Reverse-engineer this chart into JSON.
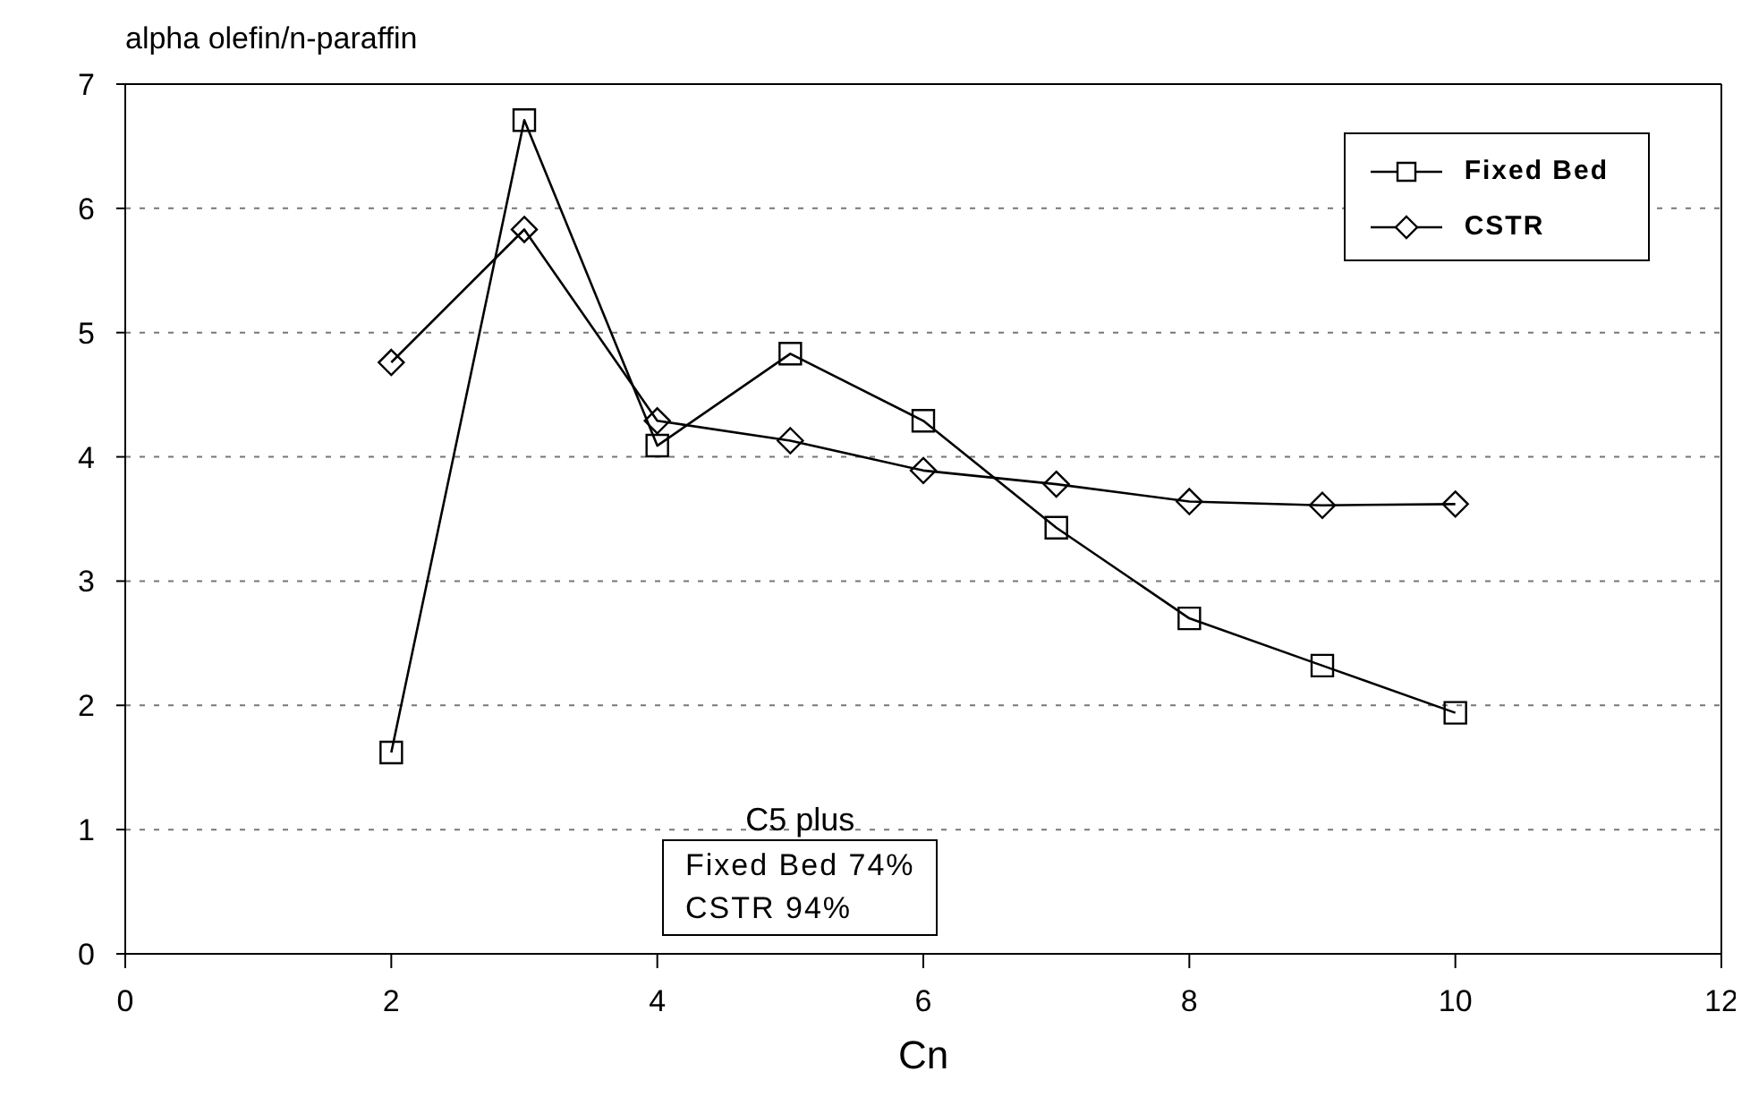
{
  "chart_data": {
    "type": "line",
    "ylabel": "alpha olefin/n-paraffin",
    "xlabel": "Cn",
    "x": [
      2,
      3,
      4,
      5,
      6,
      7,
      8,
      9,
      10
    ],
    "series": [
      {
        "name": "Fixed Bed",
        "color": "#000000",
        "marker": "square",
        "values": [
          1.62,
          6.71,
          4.09,
          4.83,
          4.29,
          3.43,
          2.7,
          2.32,
          1.94
        ]
      },
      {
        "name": "CSTR",
        "color": "#000000",
        "marker": "diamond",
        "values": [
          4.76,
          5.83,
          4.29,
          4.13,
          3.89,
          3.78,
          3.64,
          3.61,
          3.62
        ]
      }
    ],
    "xlim": [
      0,
      12
    ],
    "xticks": [
      0,
      2,
      4,
      6,
      8,
      10,
      12
    ],
    "ylim": [
      0,
      7
    ],
    "yticks": [
      0,
      1,
      2,
      3,
      4,
      5,
      6,
      7
    ],
    "grid": "y",
    "legend": "top right",
    "annotations": [
      "C5 plus",
      "Fixed Bed 74%",
      "CSTR 94%"
    ]
  }
}
